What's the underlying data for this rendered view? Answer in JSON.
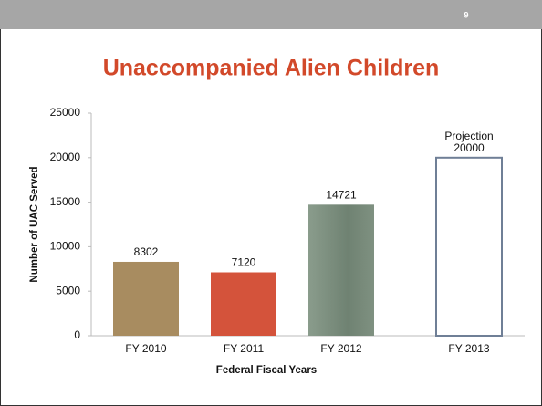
{
  "slide_number": "9",
  "chart_data": {
    "type": "bar",
    "title": "Unaccompanied Alien Children",
    "xlabel": "Federal Fiscal Years",
    "ylabel": "Number of UAC Served",
    "categories": [
      "FY 2010",
      "FY 2011",
      "FY 2012",
      "FY 2013"
    ],
    "values": [
      8302,
      7120,
      14721,
      20000
    ],
    "bar_styles": [
      {
        "fill": "#a88c60"
      },
      {
        "fill": "#d4533b"
      },
      {
        "fill": "#7c8e7f"
      },
      {
        "fill": "#ffffff",
        "stroke": "#6f7f96"
      }
    ],
    "annotation": "Projection",
    "ylim": [
      0,
      25000
    ],
    "yticks": [
      0,
      5000,
      10000,
      15000,
      20000,
      25000
    ],
    "grid": false
  }
}
